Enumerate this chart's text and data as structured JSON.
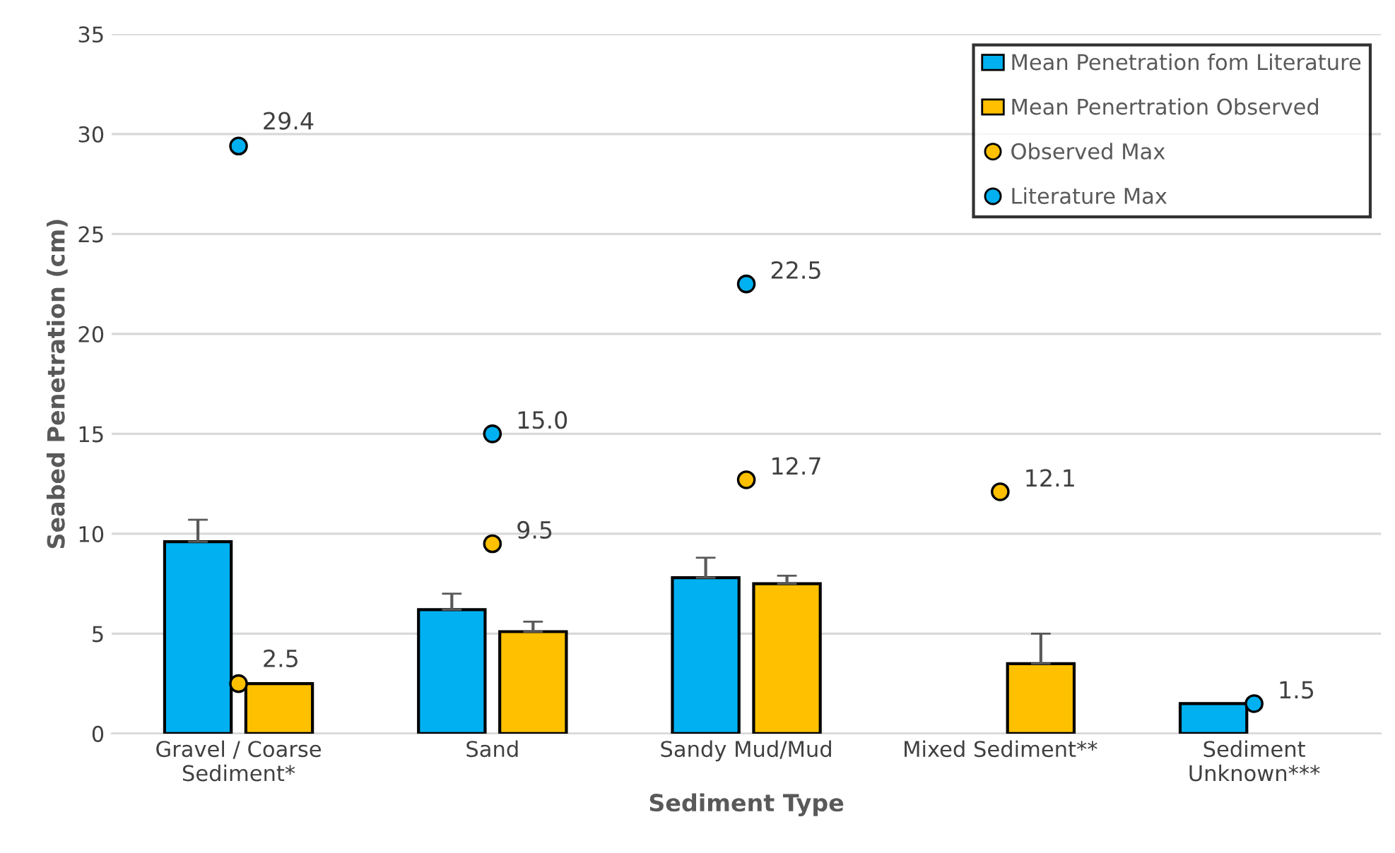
{
  "chart_data": {
    "type": "bar",
    "xlabel": "Sediment Type",
    "ylabel": "Seabed Penetration (cm)",
    "categories": [
      "Gravel / Coarse\nSediment*",
      "Sand",
      "Sandy Mud/Mud",
      "Mixed Sediment**",
      "Sediment\nUnknown***"
    ],
    "series": [
      {
        "name": "Mean Penetration fom Literature",
        "color": "#00b0f0",
        "values": [
          9.6,
          6.2,
          7.8,
          null,
          1.5
        ],
        "errors": [
          1.1,
          0.8,
          1.0,
          null,
          null
        ]
      },
      {
        "name": "Mean Penertration Observed",
        "color": "#ffc000",
        "values": [
          2.5,
          5.1,
          7.5,
          3.5,
          null
        ],
        "errors": [
          null,
          0.5,
          0.4,
          1.5,
          null
        ]
      },
      {
        "name": "Observed Max",
        "type": "scatter",
        "color": "#ffc000",
        "values": [
          2.5,
          9.5,
          12.7,
          12.1,
          null
        ],
        "value_labels": [
          "2.5",
          "9.5",
          "12.7",
          "12.1",
          null
        ]
      },
      {
        "name": "Literature Max",
        "type": "scatter",
        "color": "#00b0f0",
        "values": [
          29.4,
          15.0,
          22.5,
          null,
          1.5
        ],
        "value_labels": [
          "29.4",
          "15.0",
          "22.5",
          null,
          "1.5"
        ]
      }
    ],
    "ylim": [
      0,
      35
    ],
    "yticks": [
      0,
      5,
      10,
      15,
      20,
      25,
      30,
      35
    ],
    "grid": "y",
    "legend": "top right",
    "marker": "circle"
  }
}
